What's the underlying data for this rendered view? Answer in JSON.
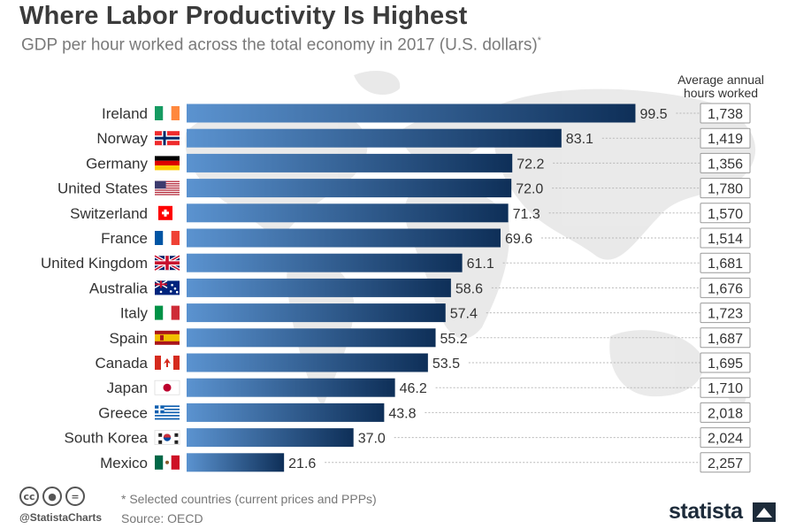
{
  "title": "Where Labor Productivity Is Highest",
  "subtitle": "GDP per hour worked across the total economy in 2017 (U.S. dollars)",
  "subtitle_mark": "*",
  "hours_header_line1": "Average annual",
  "hours_header_line2": "hours worked",
  "footnote": "* Selected countries (current prices and PPPs)",
  "source": "Source: OECD",
  "handle": "@StatistaCharts",
  "brand": "statista",
  "license_icons": [
    "cc-icon",
    "by-icon",
    "nd-icon"
  ],
  "colors": {
    "bar_dark": "#0e2f58",
    "bar_light": "#5b93d0",
    "map": "#e6e6e6",
    "title": "#3b3b3b"
  },
  "chart_data": {
    "type": "bar",
    "orientation": "horizontal",
    "categories": [
      "Ireland",
      "Norway",
      "Germany",
      "United States",
      "Switzerland",
      "France",
      "United Kingdom",
      "Australia",
      "Italy",
      "Spain",
      "Canada",
      "Japan",
      "Greece",
      "South Korea",
      "Mexico"
    ],
    "values": [
      99.5,
      83.1,
      72.2,
      72.0,
      71.3,
      69.6,
      61.1,
      58.6,
      57.4,
      55.2,
      53.5,
      46.2,
      43.8,
      37.0,
      21.6
    ],
    "value_labels": [
      "99.5",
      "83.1",
      "72.2",
      "72.0",
      "71.3",
      "69.6",
      "61.1",
      "58.6",
      "57.4",
      "55.2",
      "53.5",
      "46.2",
      "43.8",
      "37.0",
      "21.6"
    ],
    "hours_worked": [
      "1,738",
      "1,419",
      "1,356",
      "1,780",
      "1,570",
      "1,514",
      "1,681",
      "1,676",
      "1,723",
      "1,687",
      "1,695",
      "1,710",
      "2,018",
      "2,024",
      "2,257"
    ],
    "flags": [
      "ireland",
      "norway",
      "germany",
      "united-states",
      "switzerland",
      "france",
      "united-kingdom",
      "australia",
      "italy",
      "spain",
      "canada",
      "japan",
      "greece",
      "south-korea",
      "mexico"
    ],
    "xlim": [
      0,
      100
    ],
    "grid": false,
    "legend": "none"
  }
}
